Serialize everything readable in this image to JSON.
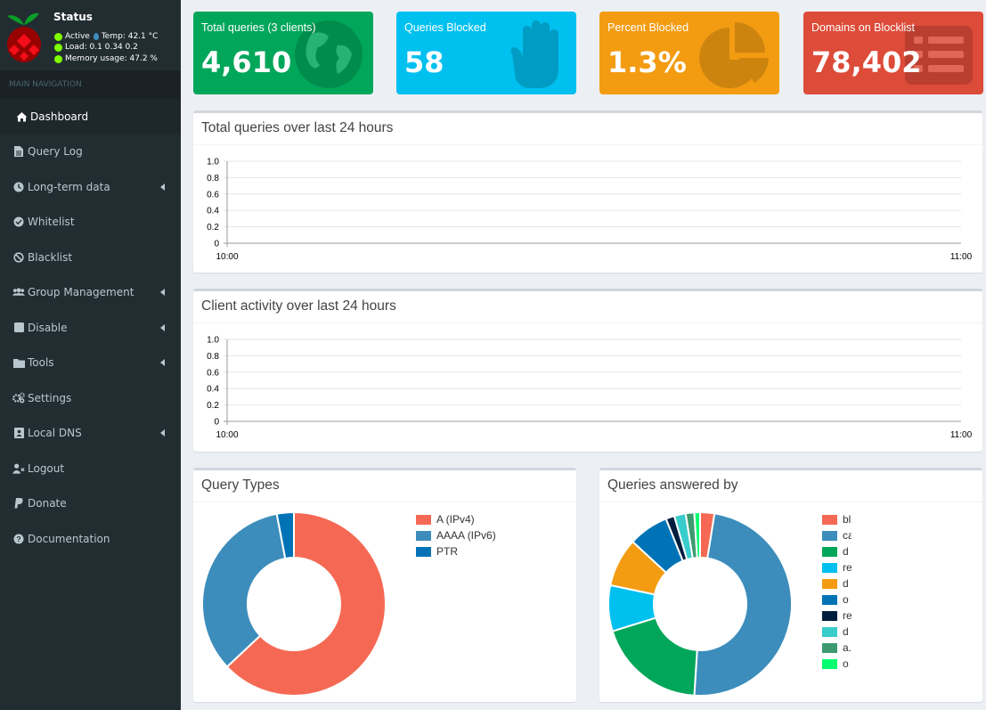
{
  "status": {
    "title": "Status",
    "active_label": "Active",
    "temp_label": "Temp: 42.1 °C",
    "load_label": "Load:  0.1  0.34  0.2",
    "memory_label": "Memory usage:  47.2 %"
  },
  "sidebar": {
    "header": "MAIN NAVIGATION",
    "items": [
      {
        "label": "Dashboard",
        "icon": "home-icon"
      },
      {
        "label": "Query Log",
        "icon": "file-icon"
      },
      {
        "label": "Long-term data",
        "icon": "clock-icon"
      },
      {
        "label": "Whitelist",
        "icon": "check-circle-icon"
      },
      {
        "label": "Blacklist",
        "icon": "ban-icon"
      },
      {
        "label": "Group Management",
        "icon": "users-icon"
      },
      {
        "label": "Disable",
        "icon": "stop-icon"
      },
      {
        "label": "Tools",
        "icon": "folder-icon"
      },
      {
        "label": "Settings",
        "icon": "gears-icon"
      },
      {
        "label": "Local DNS",
        "icon": "address-book-icon"
      },
      {
        "label": "Logout",
        "icon": "user-times-icon"
      },
      {
        "label": "Donate",
        "icon": "paypal-icon"
      },
      {
        "label": "Documentation",
        "icon": "question-circle-icon"
      }
    ]
  },
  "info_boxes": [
    {
      "label": "Total queries (3 clients)",
      "value": "4,610",
      "color": "#00a65a",
      "icon": "globe-icon"
    },
    {
      "label": "Queries Blocked",
      "value": "58",
      "color": "#00c0ef",
      "icon": "hand-icon"
    },
    {
      "label": "Percent Blocked",
      "value": "1.3%",
      "color": "#f39c12",
      "icon": "pie-chart-icon"
    },
    {
      "label": "Domains on Blocklist",
      "value": "78,402",
      "color": "#dd4b39",
      "icon": "list-icon"
    }
  ],
  "panels": {
    "queries_title": "Total queries over last 24 hours",
    "clients_title": "Client activity over last 24 hours",
    "query_types_title": "Query Types",
    "answered_title": "Queries answered by"
  },
  "chart_data": [
    {
      "type": "line",
      "title": "Total queries over last 24 hours",
      "x_ticks": [
        "10:00",
        "11:00"
      ],
      "y_ticks": [
        "1.0",
        "0.8",
        "0.6",
        "0.4",
        "0.2",
        "0"
      ],
      "ylim": [
        0,
        1.0
      ],
      "series": []
    },
    {
      "type": "line",
      "title": "Client activity over last 24 hours",
      "x_ticks": [
        "10:00",
        "11:00"
      ],
      "y_ticks": [
        "1.0",
        "0.8",
        "0.6",
        "0.4",
        "0.2",
        "0"
      ],
      "ylim": [
        0,
        1.0
      ],
      "series": []
    },
    {
      "type": "pie",
      "title": "Query Types",
      "donut": true,
      "labels": [
        "A (IPv4)",
        "AAAA (IPv6)",
        "PTR"
      ],
      "values": [
        63,
        34,
        3
      ],
      "colors": [
        "#f56954",
        "#3c8dbc",
        "#0073b7"
      ]
    },
    {
      "type": "pie",
      "title": "Queries answered by",
      "donut": true,
      "labels": [
        "blocklist",
        "cache",
        "d",
        "re",
        "d",
        "o",
        "re",
        "d",
        "a.",
        "o"
      ],
      "values": [
        2.5,
        48,
        19,
        8,
        8.5,
        7,
        1.5,
        2,
        1.5,
        1
      ],
      "colors": [
        "#f56954",
        "#3c8dbc",
        "#00a65a",
        "#00c0ef",
        "#f39c12",
        "#0073b7",
        "#001f3f",
        "#39cccc",
        "#3d9970",
        "#01ff70"
      ]
    }
  ]
}
